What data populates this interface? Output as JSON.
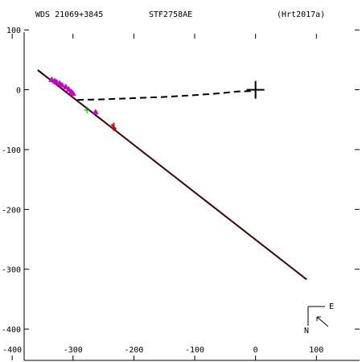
{
  "header": {
    "system_id": "WDS 21069+3845",
    "discoverer": "STF2758AE",
    "reference": "(Hrt2017a)"
  },
  "compass": {
    "east_label": "E",
    "north_label": "N"
  },
  "colors": {
    "axes": "#000000",
    "orbit": "#000000",
    "orbit_trace": "#cc0000",
    "obs_magenta": "#cc00cc",
    "obs_red": "#cc0000",
    "obs_green": "#00a000",
    "primary": "#000000"
  },
  "chart_data": {
    "type": "scatter",
    "title": "",
    "xlabel": "",
    "ylabel": "",
    "xlim": [
      -420,
      175
    ],
    "ylim": [
      -455,
      150
    ],
    "x_ticks": [
      -400,
      -300,
      -200,
      -100,
      0,
      100
    ],
    "x_tick_labels": [
      "-400",
      "-300",
      "-200",
      "-100",
      "0",
      "100"
    ],
    "y_ticks": [
      100,
      0,
      -100,
      -200,
      -300,
      -400
    ],
    "y_tick_labels": [
      "100",
      "0",
      "-100",
      "-200",
      "-300",
      "-400"
    ],
    "grid": false,
    "primary_star": {
      "x": 0,
      "y": 0
    },
    "orbit_line": {
      "x": [
        -358,
        84
      ],
      "y": [
        33,
        -317
      ]
    },
    "residual_connector": {
      "x": [
        -293,
        -250,
        -200,
        -150,
        -100,
        -60,
        -30,
        0
      ],
      "y": [
        -17,
        -16,
        -14,
        -12,
        -9,
        -6,
        -3,
        -2
      ]
    },
    "series": [
      {
        "marker": "triangle",
        "color": "magenta",
        "x": [
          -335,
          -330,
          -327,
          -322,
          -318,
          -312,
          -307,
          -303,
          -300,
          -263
        ],
        "y": [
          17,
          15,
          13,
          11,
          8,
          5,
          1,
          -3,
          -6,
          -37
        ]
      },
      {
        "marker": "cross",
        "color": "green",
        "x": [
          -277
        ],
        "y": [
          -34
        ]
      },
      {
        "marker": "tick",
        "color": "red",
        "x": [
          -233
        ],
        "y": [
          -62
        ]
      }
    ]
  }
}
